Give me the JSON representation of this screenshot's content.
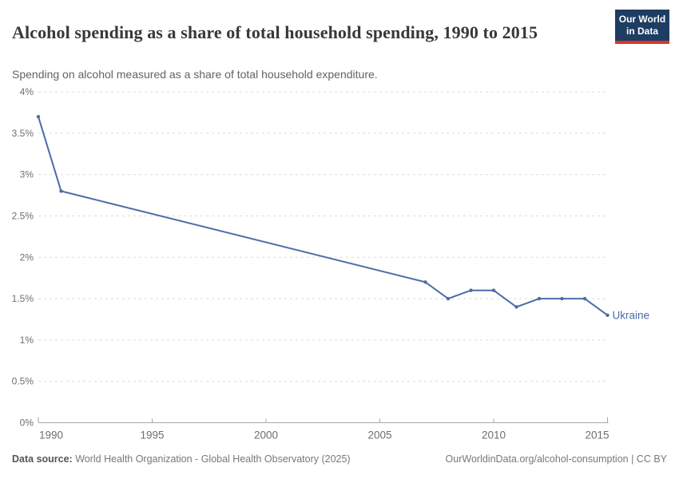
{
  "header": {
    "title": "Alcohol spending as a share of total household spending, 1990 to 2015",
    "subtitle": "Spending on alcohol measured as a share of total household expenditure.",
    "logo": {
      "line1": "Our World",
      "line2": "in Data"
    }
  },
  "chart_data": {
    "type": "line",
    "title": "Alcohol spending as a share of total household spending, 1990 to 2015",
    "xlabel": "",
    "ylabel": "",
    "xlim": [
      1990,
      2015
    ],
    "ylim": [
      0,
      4
    ],
    "grid": "horizontal-dashed",
    "legend_position": "end-of-line-label",
    "x_ticks": [
      1990,
      1995,
      2000,
      2005,
      2010,
      2015
    ],
    "y_ticks": [
      {
        "value": 0,
        "label": "0%"
      },
      {
        "value": 0.5,
        "label": "0.5%"
      },
      {
        "value": 1,
        "label": "1%"
      },
      {
        "value": 1.5,
        "label": "1.5%"
      },
      {
        "value": 2,
        "label": "2%"
      },
      {
        "value": 2.5,
        "label": "2.5%"
      },
      {
        "value": 3,
        "label": "3%"
      },
      {
        "value": 3.5,
        "label": "3.5%"
      },
      {
        "value": 4,
        "label": "4%"
      }
    ],
    "series": [
      {
        "name": "Ukraine",
        "color": "#4C6CA8",
        "unit": "%",
        "x": [
          1990,
          1991,
          2007,
          2008,
          2009,
          2010,
          2011,
          2012,
          2013,
          2014,
          2015
        ],
        "values": [
          3.7,
          2.8,
          1.7,
          1.5,
          1.6,
          1.6,
          1.4,
          1.5,
          1.5,
          1.5,
          1.3
        ]
      }
    ]
  },
  "footer": {
    "datasource_label": "Data source:",
    "datasource": "World Health Organization - Global Health Observatory (2025)",
    "link": "OurWorldinData.org/alcohol-consumption | CC BY"
  },
  "colors": {
    "line": "#4C6CA8",
    "grid": "#dadada",
    "axis": "#a8a8a8",
    "tick_label": "#6e6e6e",
    "logo_bg": "#1d3d63",
    "logo_red": "#d8352a"
  }
}
